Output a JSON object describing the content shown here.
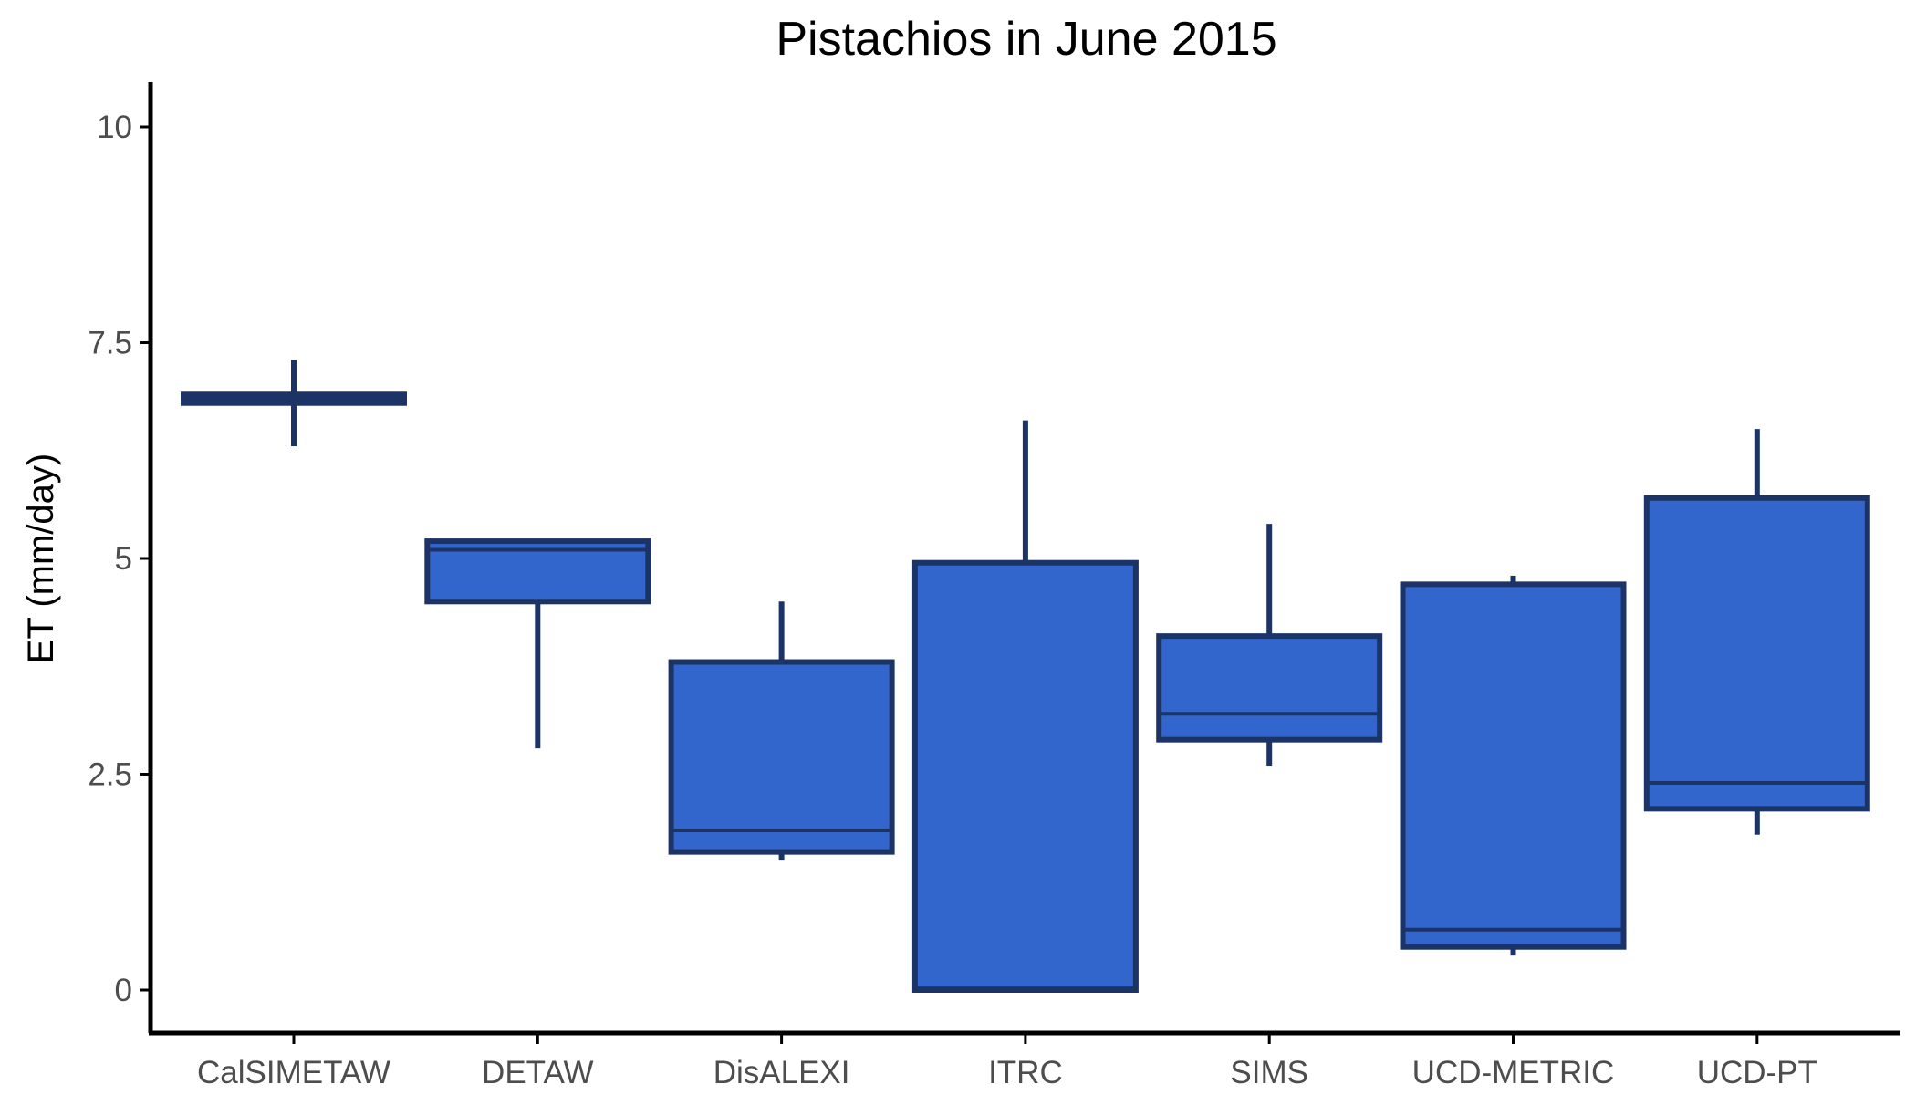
{
  "chart_data": {
    "type": "boxplot",
    "title": "Pistachios in June 2015",
    "xlabel": "",
    "ylabel": "ET (mm/day)",
    "ylim": [
      -0.5,
      10.5
    ],
    "yticks": [
      0,
      2.5,
      5,
      7.5,
      10
    ],
    "ytick_labels": [
      "0",
      "2.5",
      "5",
      "7.5",
      "10"
    ],
    "categories": [
      "CalSIMETAW",
      "DETAW",
      "DisALEXI",
      "ITRC",
      "SIMS",
      "UCD-METRIC",
      "UCD-PT"
    ],
    "boxes": [
      {
        "category": "CalSIMETAW",
        "whisker_low": 6.3,
        "q1": 6.8,
        "median": 6.85,
        "q3": 6.9,
        "whisker_high": 7.3
      },
      {
        "category": "DETAW",
        "whisker_low": 2.8,
        "q1": 4.5,
        "median": 5.1,
        "q3": 5.2,
        "whisker_high": 5.2
      },
      {
        "category": "DisALEXI",
        "whisker_low": 1.5,
        "q1": 1.6,
        "median": 1.85,
        "q3": 3.8,
        "whisker_high": 4.5
      },
      {
        "category": "ITRC",
        "whisker_low": 0.0,
        "q1": 0.0,
        "median": 0.02,
        "q3": 4.95,
        "whisker_high": 6.6
      },
      {
        "category": "SIMS",
        "whisker_low": 2.6,
        "q1": 2.9,
        "median": 3.2,
        "q3": 4.1,
        "whisker_high": 5.4
      },
      {
        "category": "UCD-METRIC",
        "whisker_low": 0.4,
        "q1": 0.5,
        "median": 0.7,
        "q3": 4.7,
        "whisker_high": 4.8
      },
      {
        "category": "UCD-PT",
        "whisker_low": 1.8,
        "q1": 2.1,
        "median": 2.4,
        "q3": 5.7,
        "whisker_high": 6.5
      }
    ],
    "colors": {
      "box_fill": "#3366cc",
      "box_edge": "#1c3366",
      "axis": "#000000",
      "tick_text": "#4d4d4d"
    },
    "grid": false,
    "legend": "none"
  }
}
